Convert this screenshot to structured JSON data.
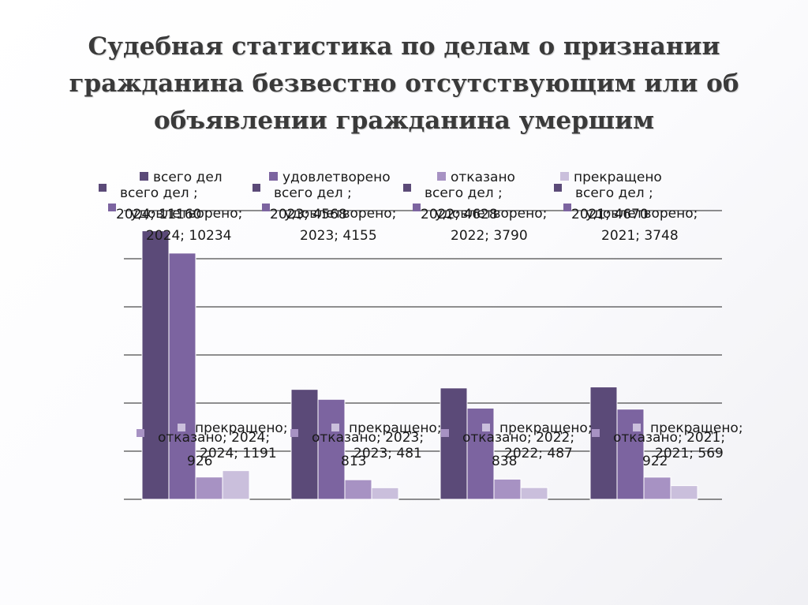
{
  "title": "Судебная статистика по делам о признании гражданина безвестно отсутствующим или об объявлении гражданина умершим",
  "colors": {
    "vsego": "#5b4a78",
    "udovl": "#7c64a0",
    "otkaz": "#a792c3",
    "prekr": "#cabfdc"
  },
  "chart_data": {
    "type": "bar",
    "categories": [
      "2024",
      "2023",
      "2022",
      "2021"
    ],
    "series": [
      {
        "name": "всего дел",
        "values": [
          11160,
          4568,
          4628,
          4670
        ]
      },
      {
        "name": "удовлетворено",
        "values": [
          10234,
          4155,
          3790,
          3748
        ]
      },
      {
        "name": "отказано",
        "values": [
          926,
          813,
          838,
          922
        ]
      },
      {
        "name": "прекращено",
        "values": [
          1191,
          481,
          487,
          569
        ]
      }
    ],
    "ylim": [
      0,
      12000
    ],
    "grid": true,
    "legend": "top",
    "data_labels": [
      [
        [
          "всего дел ;",
          "2024; 11160"
        ],
        [
          "удовлетворено;",
          "2024; 10234"
        ],
        [
          "отказано; 2024;",
          "926"
        ],
        [
          "прекращено;",
          "2024; 1191"
        ]
      ],
      [
        [
          "всего дел ;",
          "2023; 4568"
        ],
        [
          "удовлетворено;",
          "2023; 4155"
        ],
        [
          "отказано; 2023;",
          "813"
        ],
        [
          "прекращено;",
          "2023; 481"
        ]
      ],
      [
        [
          "всего дел ;",
          "2022; 4628"
        ],
        [
          "удовлетворено;",
          "2022; 3790"
        ],
        [
          "отказано; 2022;",
          "838"
        ],
        [
          "прекращено;",
          "2022; 487"
        ]
      ],
      [
        [
          "всего дел ;",
          "2021; 4670"
        ],
        [
          "удовлетворено;",
          "2021; 3748"
        ],
        [
          "отказано; 2021;",
          "922"
        ],
        [
          "прекращено;",
          "2021; 569"
        ]
      ]
    ]
  }
}
